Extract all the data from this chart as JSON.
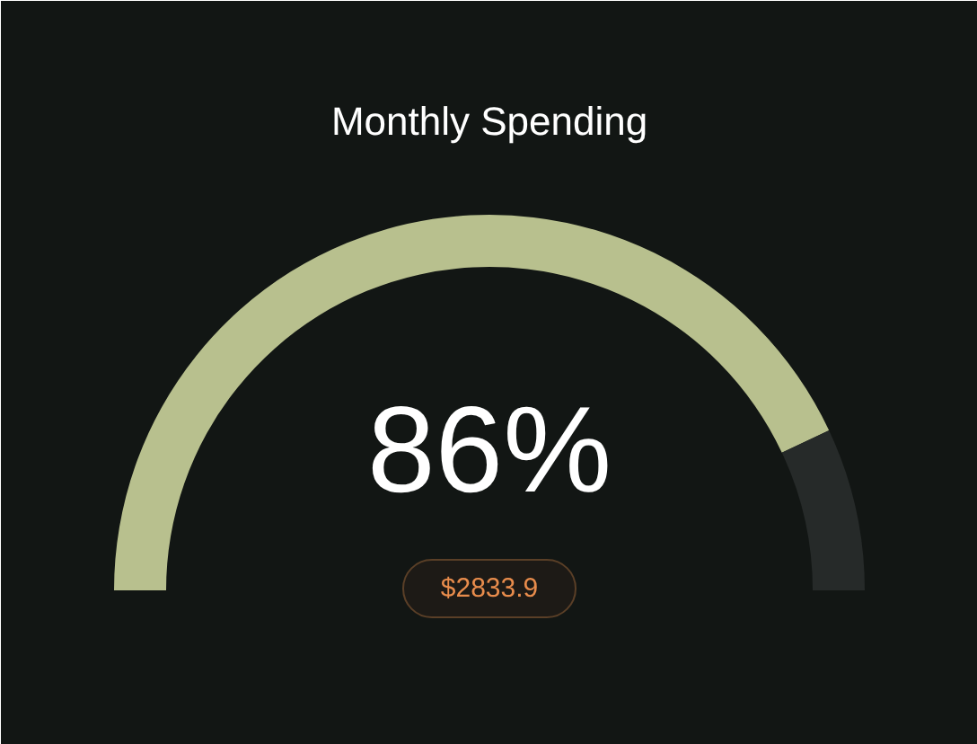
{
  "chart_data": {
    "type": "donut",
    "title": "Monthly Spending",
    "categories": [
      null,
      null
    ],
    "values": [
      86,
      14
    ],
    "colors": [
      "#b8c08e",
      "#262a29"
    ],
    "value_labels": [
      "86%",
      null
    ],
    "annotations": [
      "$2833.9"
    ]
  }
}
